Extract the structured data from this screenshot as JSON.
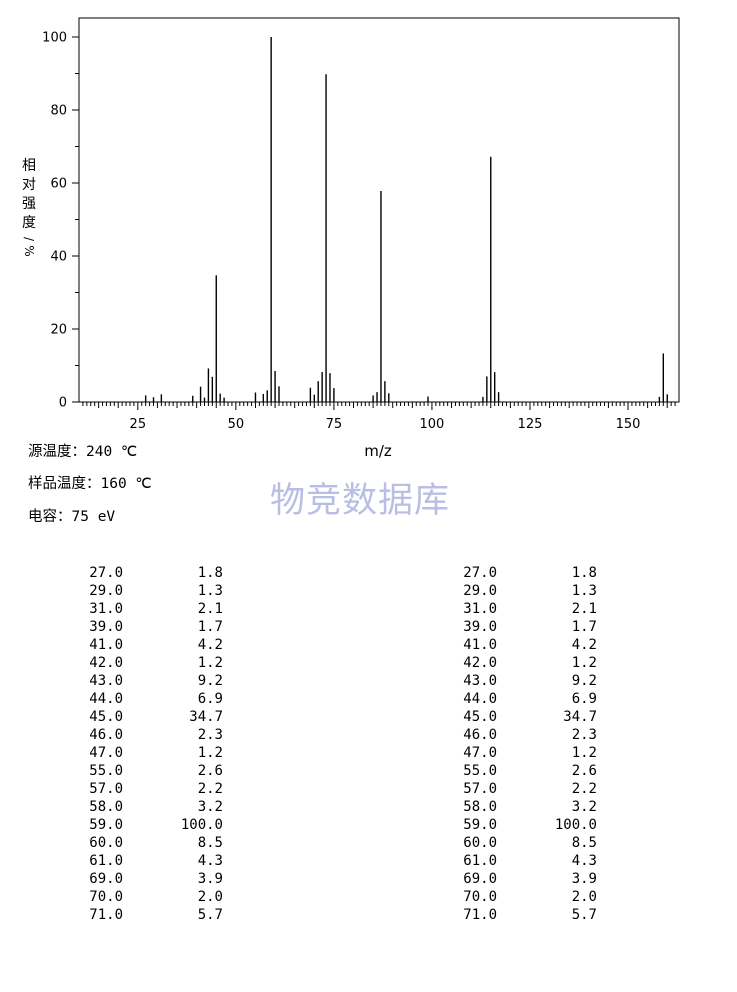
{
  "chart_data": {
    "type": "bar",
    "xlabel": "m/z",
    "ylabel": "相对强度/%",
    "xlim": [
      10,
      163
    ],
    "ylim": [
      0,
      105
    ],
    "x_ticks": [
      25,
      50,
      75,
      100,
      125,
      150
    ],
    "y_ticks": [
      0,
      20,
      40,
      60,
      80,
      100
    ],
    "peaks": [
      {
        "mz": 27,
        "intensity": 1.8
      },
      {
        "mz": 29,
        "intensity": 1.3
      },
      {
        "mz": 31,
        "intensity": 2.1
      },
      {
        "mz": 39,
        "intensity": 1.7
      },
      {
        "mz": 41,
        "intensity": 4.2
      },
      {
        "mz": 42,
        "intensity": 1.2
      },
      {
        "mz": 43,
        "intensity": 9.2
      },
      {
        "mz": 44,
        "intensity": 6.9
      },
      {
        "mz": 45,
        "intensity": 34.7
      },
      {
        "mz": 46,
        "intensity": 2.3
      },
      {
        "mz": 47,
        "intensity": 1.2
      },
      {
        "mz": 55,
        "intensity": 2.6
      },
      {
        "mz": 57,
        "intensity": 2.2
      },
      {
        "mz": 58,
        "intensity": 3.2
      },
      {
        "mz": 59,
        "intensity": 100.0
      },
      {
        "mz": 60,
        "intensity": 8.5
      },
      {
        "mz": 61,
        "intensity": 4.3
      },
      {
        "mz": 69,
        "intensity": 3.9
      },
      {
        "mz": 70,
        "intensity": 2.0
      },
      {
        "mz": 71,
        "intensity": 5.7
      },
      {
        "mz": 72,
        "intensity": 8.2
      },
      {
        "mz": 73,
        "intensity": 89.8
      },
      {
        "mz": 74,
        "intensity": 7.9
      },
      {
        "mz": 75,
        "intensity": 3.8
      },
      {
        "mz": 85,
        "intensity": 1.8
      },
      {
        "mz": 86,
        "intensity": 2.7
      },
      {
        "mz": 87,
        "intensity": 57.8
      },
      {
        "mz": 88,
        "intensity": 5.7
      },
      {
        "mz": 89,
        "intensity": 2.4
      },
      {
        "mz": 99,
        "intensity": 1.5
      },
      {
        "mz": 113,
        "intensity": 1.4
      },
      {
        "mz": 114,
        "intensity": 7.0
      },
      {
        "mz": 115,
        "intensity": 67.2
      },
      {
        "mz": 116,
        "intensity": 8.2
      },
      {
        "mz": 117,
        "intensity": 2.7
      },
      {
        "mz": 158,
        "intensity": 1.4
      },
      {
        "mz": 159,
        "intensity": 13.3
      },
      {
        "mz": 160,
        "intensity": 2.1
      }
    ]
  },
  "info": {
    "source_temp_label": "源温度：",
    "source_temp_value": "240 ℃",
    "sample_temp_label": "样品温度：",
    "sample_temp_value": "160 ℃",
    "voltage_label": "电容：",
    "voltage_value": "75 eV"
  },
  "watermark": "物竞数据库",
  "table": {
    "rows": [
      {
        "mz": "27.0",
        "abundance": "1.8"
      },
      {
        "mz": "29.0",
        "abundance": "1.3"
      },
      {
        "mz": "31.0",
        "abundance": "2.1"
      },
      {
        "mz": "39.0",
        "abundance": "1.7"
      },
      {
        "mz": "41.0",
        "abundance": "4.2"
      },
      {
        "mz": "42.0",
        "abundance": "1.2"
      },
      {
        "mz": "43.0",
        "abundance": "9.2"
      },
      {
        "mz": "44.0",
        "abundance": "6.9"
      },
      {
        "mz": "45.0",
        "abundance": "34.7"
      },
      {
        "mz": "46.0",
        "abundance": "2.3"
      },
      {
        "mz": "47.0",
        "abundance": "1.2"
      },
      {
        "mz": "55.0",
        "abundance": "2.6"
      },
      {
        "mz": "57.0",
        "abundance": "2.2"
      },
      {
        "mz": "58.0",
        "abundance": "3.2"
      },
      {
        "mz": "59.0",
        "abundance": "100.0"
      },
      {
        "mz": "60.0",
        "abundance": "8.5"
      },
      {
        "mz": "61.0",
        "abundance": "4.3"
      },
      {
        "mz": "69.0",
        "abundance": "3.9"
      },
      {
        "mz": "70.0",
        "abundance": "2.0"
      },
      {
        "mz": "71.0",
        "abundance": "5.7"
      }
    ]
  }
}
